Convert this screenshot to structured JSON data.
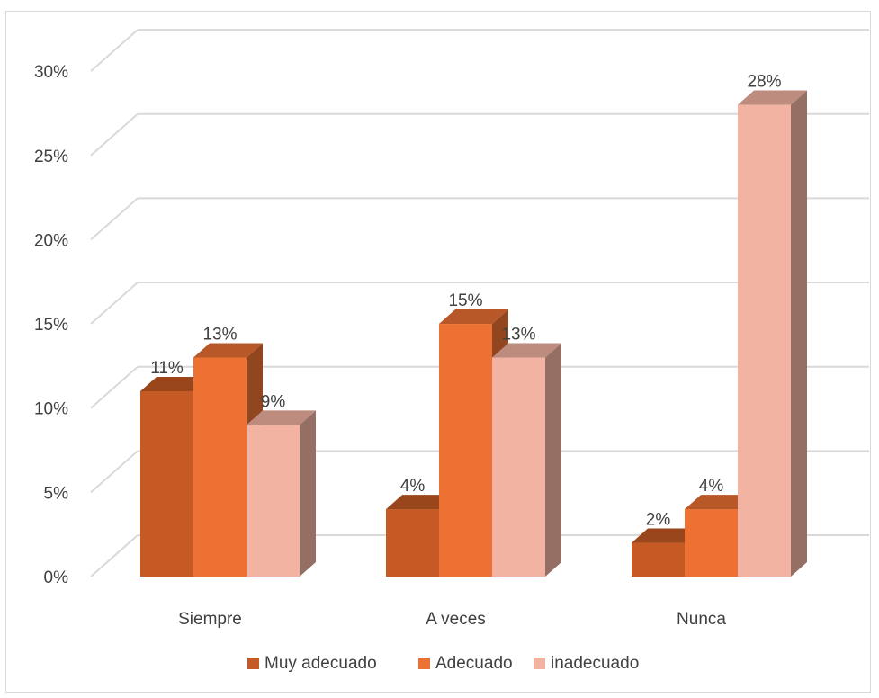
{
  "chart_data": {
    "type": "bar",
    "categories": [
      "Siempre",
      "A veces",
      "Nunca"
    ],
    "series": [
      {
        "name": "Muy adecuado",
        "values": [
          11,
          4,
          2
        ],
        "labels": [
          "11%",
          "4%",
          "2%"
        ],
        "color": "#c55a24"
      },
      {
        "name": "Adecuado",
        "values": [
          13,
          15,
          4
        ],
        "labels": [
          "13%",
          "15%",
          "4%"
        ],
        "color": "#ec7133"
      },
      {
        "name": "inadecuado",
        "values": [
          9,
          13,
          28
        ],
        "labels": [
          "9%",
          "13%",
          "28%"
        ],
        "color": "#f2b3a2"
      }
    ],
    "y_ticks": [
      "0%",
      "5%",
      "10%",
      "15%",
      "20%",
      "25%",
      "30%"
    ],
    "ylim": [
      0,
      30
    ],
    "grid": true,
    "legend_position": "bottom",
    "style": "3d-clustered-column"
  }
}
